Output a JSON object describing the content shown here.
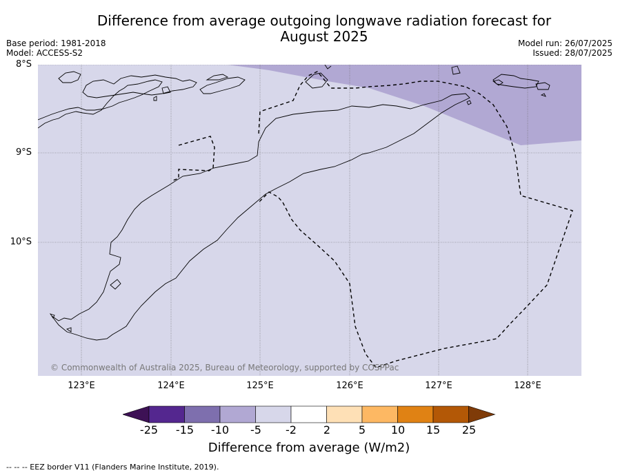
{
  "title_line1": "Difference from average outgoing longwave radiation forecast for",
  "title_line2": "August 2025",
  "base_period": "Base period: 1981-2018",
  "model": "Model: ACCESS-S2",
  "model_run": "Model run: 26/07/2025",
  "issued": "Issued: 28/07/2025",
  "lat_labels": [
    "8°S",
    "9°S",
    "10°S"
  ],
  "lon_labels": [
    "123°E",
    "124°E",
    "125°E",
    "126°E",
    "127°E",
    "128°E"
  ],
  "copyright": "© Commonwealth of Australia 2025, Bureau of Meteorology, supported by COSPPac",
  "colorbar": {
    "ticks": [
      "-25",
      "-15",
      "-10",
      "-5",
      "-2",
      "2",
      "5",
      "10",
      "15",
      "25"
    ],
    "colors": [
      "#3d1155",
      "#54278f",
      "#7e6fae",
      "#b1a8d3",
      "#d7d7ea",
      "#ffffff",
      "#fee0b6",
      "#fdb863",
      "#e08214",
      "#b35806",
      "#7f3b08"
    ],
    "label": "Difference from average (W/m2)"
  },
  "map_colors": {
    "background": "#d7d7ea",
    "anomaly_patch": "#b1a8d3"
  },
  "footnote": "--  --  -- EEZ border V11 (Flanders Marine Institute, 2019)."
}
